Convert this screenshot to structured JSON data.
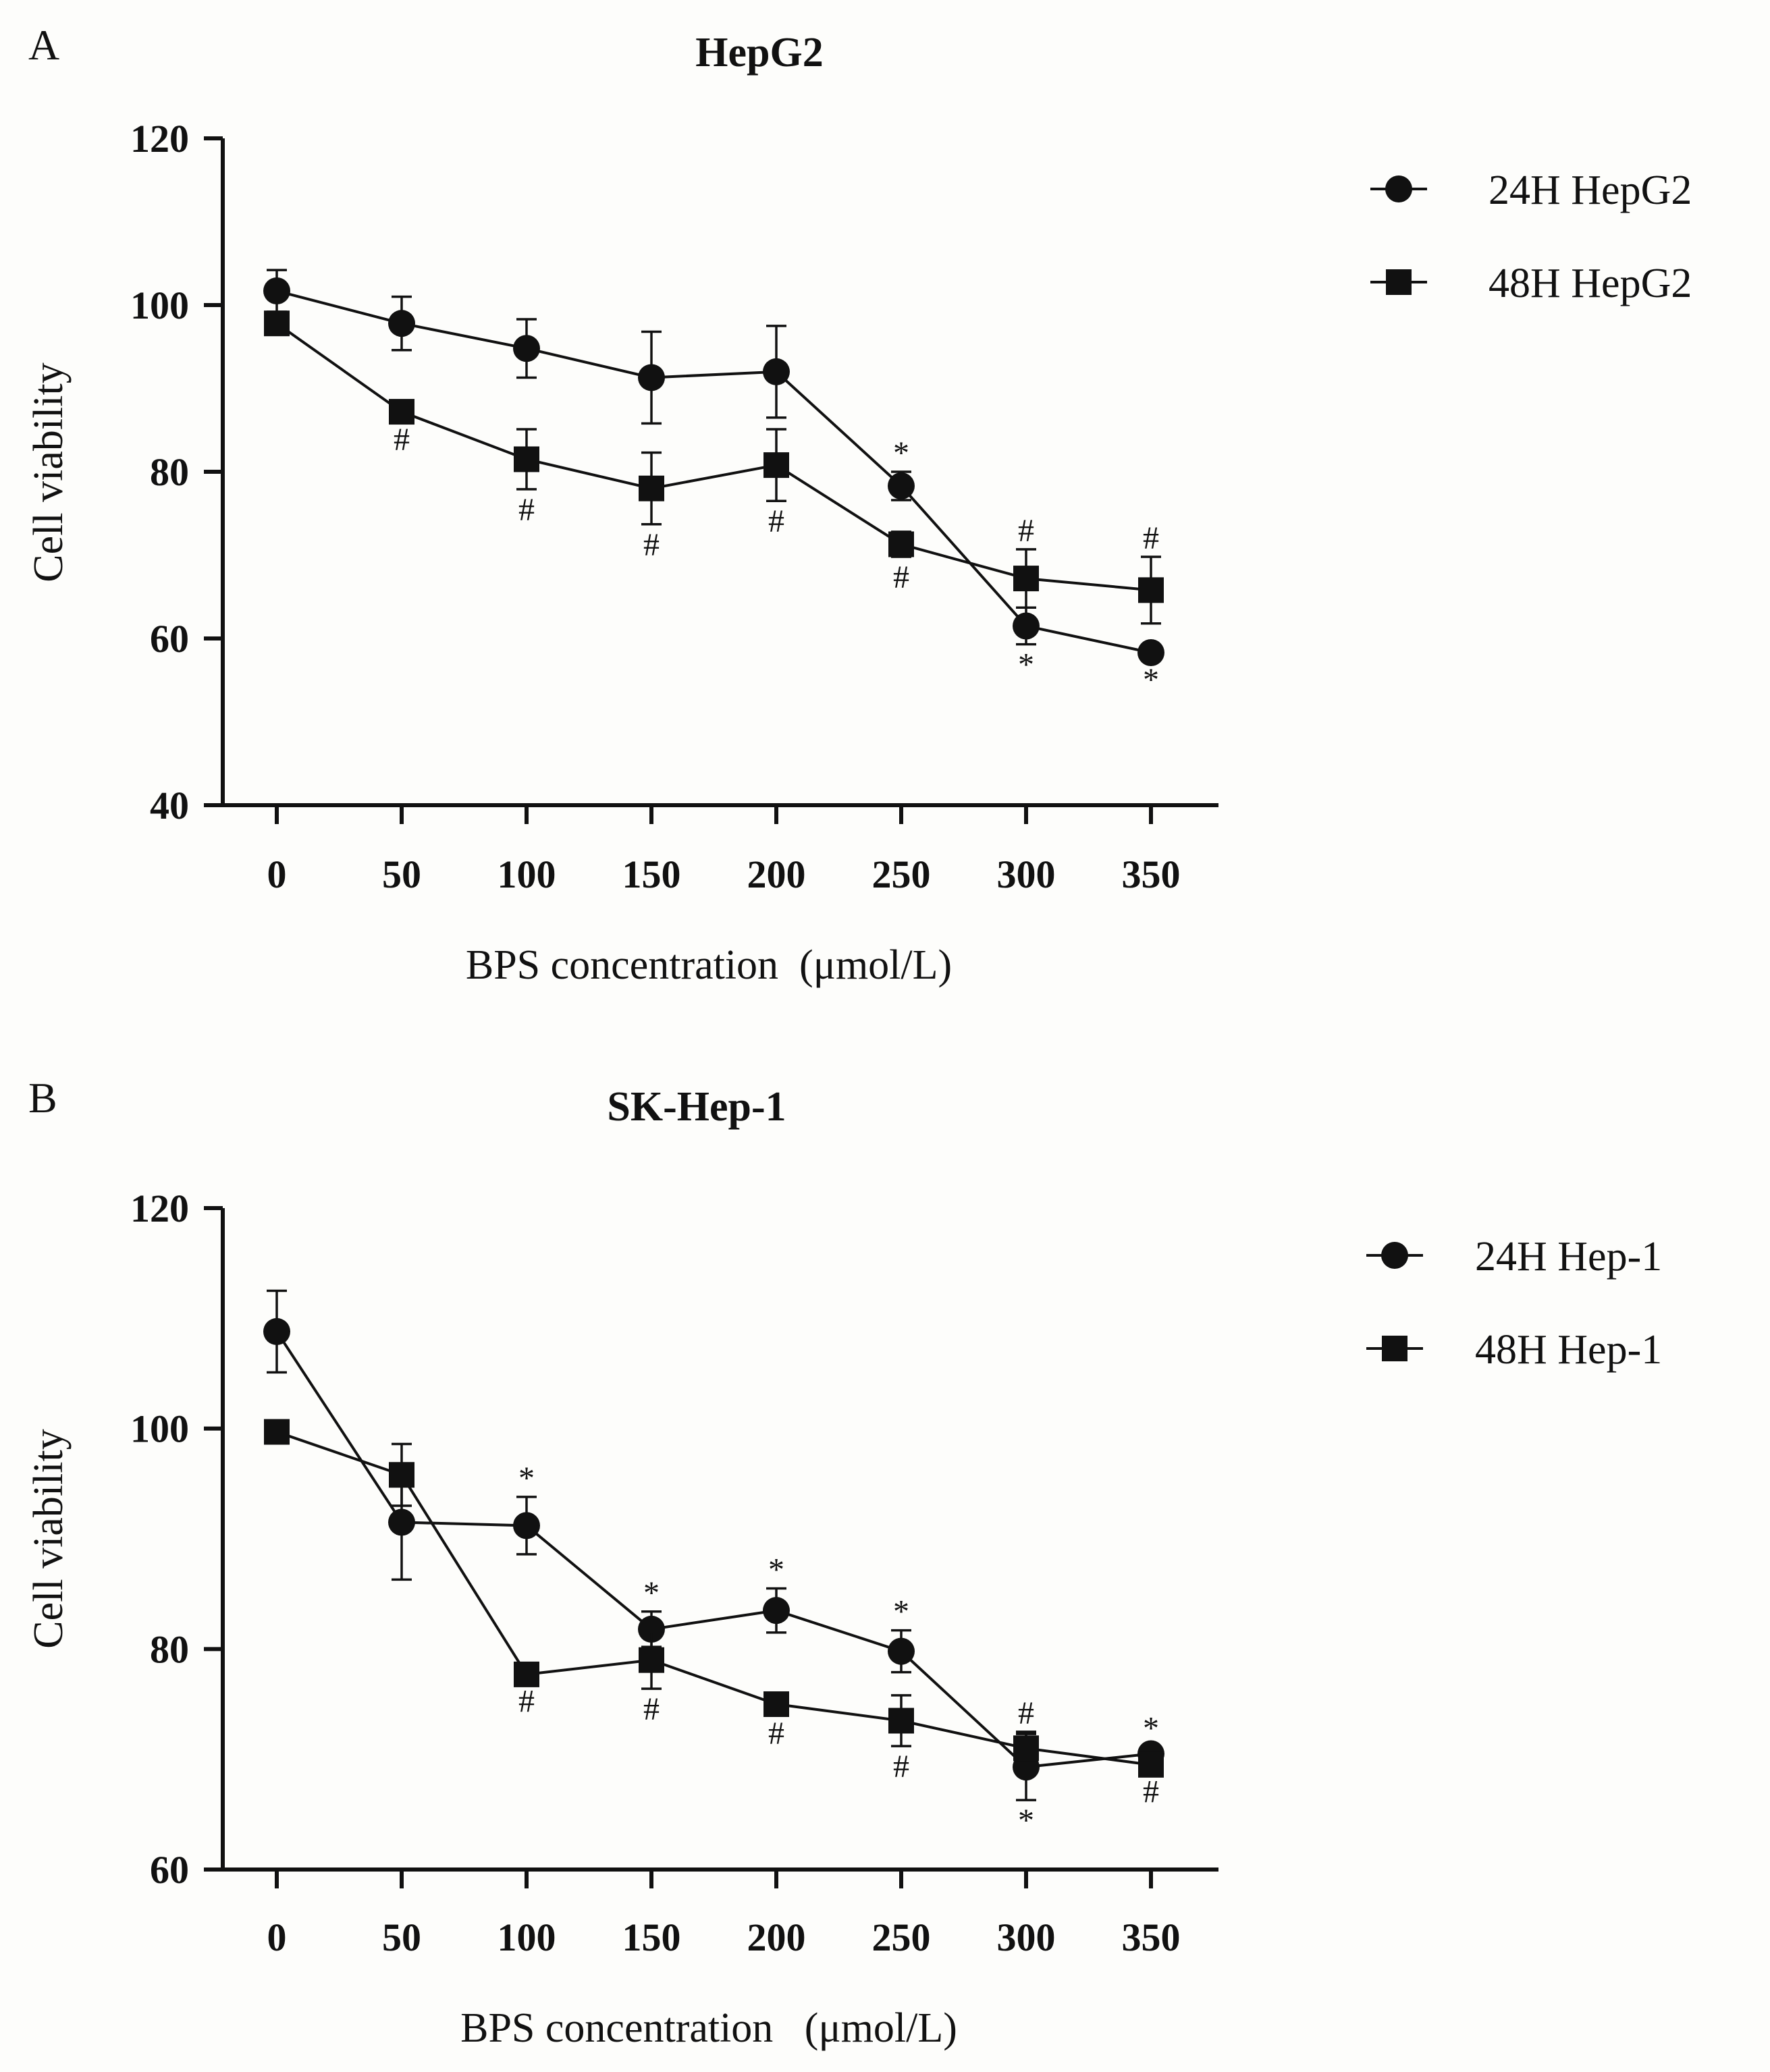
{
  "figure": {
    "background": "#fdfdfb",
    "ink": "#111111"
  },
  "chart_data": [
    {
      "panel_label": "A",
      "type": "line",
      "title": "HepG2",
      "xlabel": "BPS concentration  (μmol/L)",
      "ylabel": "Cell viability",
      "ylim": [
        40,
        120
      ],
      "yticks": [
        40,
        60,
        80,
        100,
        120
      ],
      "grid": false,
      "legend_position": "top-right",
      "categories": [
        "0",
        "50",
        "100",
        "150",
        "200",
        "250",
        "300",
        "350"
      ],
      "series": [
        {
          "name": "24H HepG2",
          "marker": "circle",
          "values": [
            101.7,
            97.8,
            94.8,
            91.3,
            92.0,
            78.3,
            61.5,
            58.3
          ],
          "errors": [
            2.5,
            3.2,
            3.5,
            5.5,
            5.5,
            1.7,
            2.2,
            0.8
          ],
          "annotations": [
            {
              "index": 5,
              "text": "*",
              "position": "above"
            },
            {
              "index": 6,
              "text": "*",
              "position": "below"
            },
            {
              "index": 7,
              "text": "*",
              "position": "below"
            }
          ]
        },
        {
          "name": "48H HepG2",
          "marker": "square",
          "values": [
            97.8,
            87.2,
            81.5,
            78.0,
            80.8,
            71.3,
            67.2,
            65.8
          ],
          "errors": [
            0.9,
            0.9,
            3.6,
            4.3,
            4.3,
            1.5,
            3.5,
            4.0
          ],
          "annotations": [
            {
              "index": 1,
              "text": "#",
              "position": "below"
            },
            {
              "index": 2,
              "text": "#",
              "position": "below"
            },
            {
              "index": 3,
              "text": "#",
              "position": "below"
            },
            {
              "index": 4,
              "text": "#",
              "position": "below"
            },
            {
              "index": 5,
              "text": "#",
              "position": "below"
            },
            {
              "index": 6,
              "text": "#",
              "position": "above"
            },
            {
              "index": 7,
              "text": "#",
              "position": "above"
            }
          ]
        }
      ]
    },
    {
      "panel_label": "B",
      "type": "line",
      "title": "SK-Hep-1",
      "xlabel": "BPS concentration   (μmol/L)",
      "ylabel": "Cell viability",
      "ylim": [
        60,
        120
      ],
      "yticks": [
        60,
        80,
        100,
        120
      ],
      "grid": false,
      "legend_position": "top-right",
      "categories": [
        "0",
        "50",
        "100",
        "150",
        "200",
        "250",
        "300",
        "350"
      ],
      "series": [
        {
          "name": "24H Hep-1",
          "marker": "circle",
          "values": [
            108.8,
            91.5,
            91.2,
            81.8,
            83.5,
            79.8,
            69.3,
            70.5
          ],
          "errors": [
            3.7,
            5.2,
            2.6,
            1.6,
            2.0,
            1.9,
            3.0,
            0.6
          ],
          "annotations": [
            {
              "index": 2,
              "text": "*",
              "position": "above"
            },
            {
              "index": 3,
              "text": "*",
              "position": "above"
            },
            {
              "index": 4,
              "text": "*",
              "position": "above"
            },
            {
              "index": 5,
              "text": "*",
              "position": "above"
            },
            {
              "index": 6,
              "text": "*",
              "position": "below"
            },
            {
              "index": 7,
              "text": "*",
              "position": "above"
            }
          ]
        },
        {
          "name": "48H Hep-1",
          "marker": "square",
          "values": [
            99.7,
            95.8,
            77.7,
            79.0,
            75.0,
            73.5,
            71.0,
            69.5
          ],
          "errors": [
            0.6,
            2.8,
            0.6,
            2.6,
            0.8,
            2.3,
            1.5,
            0.6
          ],
          "annotations": [
            {
              "index": 2,
              "text": "#",
              "position": "below"
            },
            {
              "index": 3,
              "text": "#",
              "position": "below"
            },
            {
              "index": 4,
              "text": "#",
              "position": "below"
            },
            {
              "index": 5,
              "text": "#",
              "position": "below"
            },
            {
              "index": 6,
              "text": "#",
              "position": "above"
            },
            {
              "index": 7,
              "text": "#",
              "position": "below"
            }
          ]
        }
      ]
    }
  ]
}
